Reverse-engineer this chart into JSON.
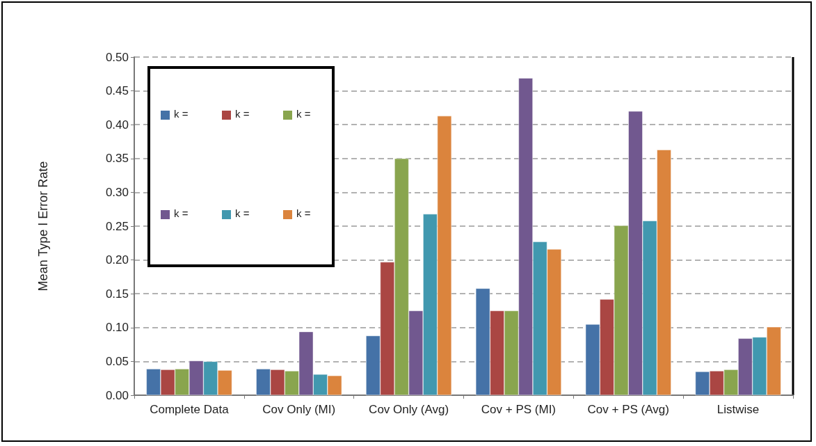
{
  "chart_data": {
    "type": "bar",
    "ylabel": "Mean Type I Error Rate",
    "categories": [
      "Complete Data",
      "Cov Only (MI)",
      "Cov Only (Avg)",
      "Cov + PS (MI)",
      "Cov + PS (Avg)",
      "Listwise"
    ],
    "series": [
      {
        "name": "k =",
        "color": "#4572a7",
        "values": [
          0.039,
          0.039,
          0.088,
          0.158,
          0.105,
          0.035
        ]
      },
      {
        "name": "k =",
        "color": "#aa4643",
        "values": [
          0.038,
          0.038,
          0.197,
          0.125,
          0.142,
          0.036
        ]
      },
      {
        "name": "k =",
        "color": "#89a54e",
        "values": [
          0.039,
          0.036,
          0.35,
          0.125,
          0.251,
          0.038
        ]
      },
      {
        "name": "k =",
        "color": "#71588f",
        "values": [
          0.051,
          0.094,
          0.125,
          0.469,
          0.42,
          0.084
        ]
      },
      {
        "name": "k =",
        "color": "#4198af",
        "values": [
          0.05,
          0.031,
          0.268,
          0.227,
          0.258,
          0.086
        ]
      },
      {
        "name": "k =",
        "color": "#db843d",
        "values": [
          0.037,
          0.029,
          0.413,
          0.216,
          0.363,
          0.101
        ]
      }
    ],
    "ylim": [
      0,
      0.5
    ],
    "yticks": [
      {
        "value": 0,
        "label": "0.00"
      },
      {
        "value": 0.05,
        "label": "0.05"
      },
      {
        "value": 0.1,
        "label": "0.10"
      },
      {
        "value": 0.15,
        "label": "0.15"
      },
      {
        "value": 0.2,
        "label": "0.20"
      },
      {
        "value": 0.25,
        "label": "0.25"
      },
      {
        "value": 0.3,
        "label": "0.30"
      },
      {
        "value": 0.35,
        "label": "0.35"
      },
      {
        "value": 0.4,
        "label": "0.40"
      },
      {
        "value": 0.45,
        "label": "0.45"
      },
      {
        "value": 0.5,
        "label": "0.50"
      }
    ],
    "grid": "y",
    "legend": "top left"
  }
}
